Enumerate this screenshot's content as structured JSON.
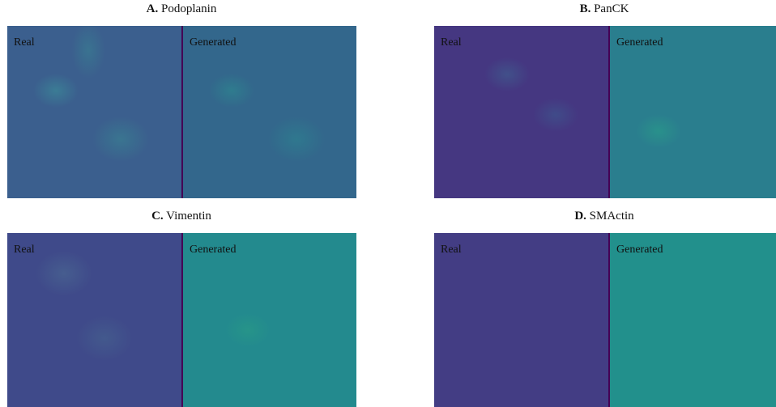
{
  "panels": [
    {
      "letter": "A.",
      "name": "Podoplanin",
      "left_label": "Real",
      "right_label": "Generated"
    },
    {
      "letter": "B.",
      "name": "PanCK",
      "left_label": "Real",
      "right_label": "Generated"
    },
    {
      "letter": "C.",
      "name": "Vimentin",
      "left_label": "Real",
      "right_label": "Generated"
    },
    {
      "letter": "D.",
      "name": "SMActin",
      "left_label": "Real",
      "right_label": "Generated"
    }
  ]
}
